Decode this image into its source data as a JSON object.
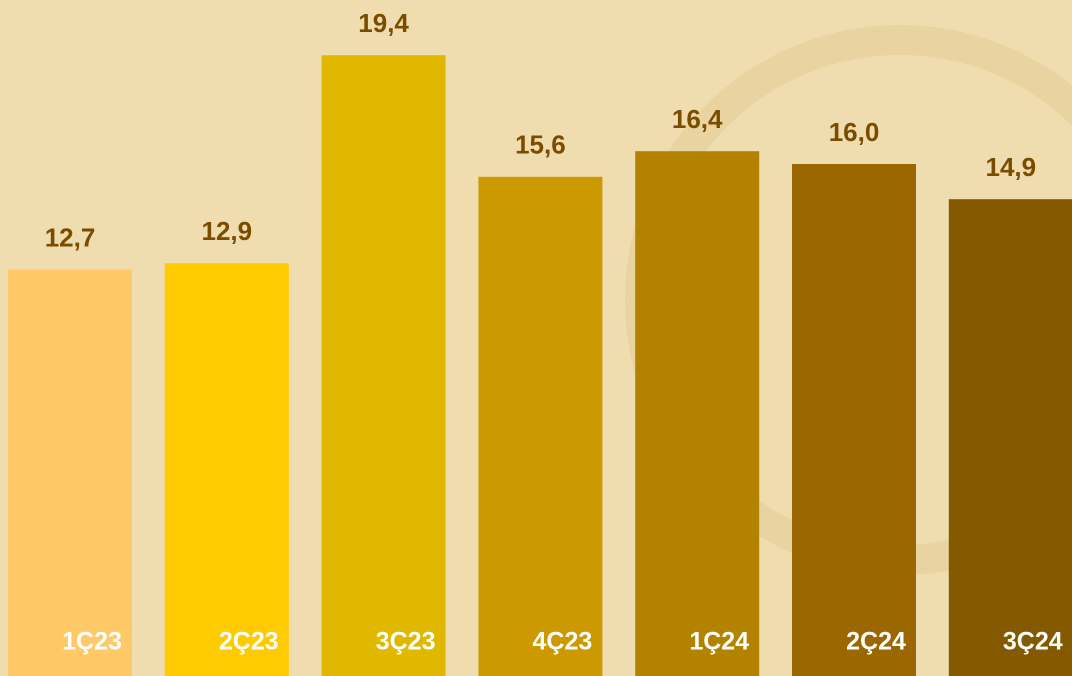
{
  "chart_data": {
    "type": "bar",
    "categories": [
      "1Ç23",
      "2Ç23",
      "3Ç23",
      "4Ç23",
      "1Ç24",
      "2Ç24",
      "3Ç24"
    ],
    "values": [
      12.7,
      12.9,
      19.4,
      15.6,
      16.4,
      16.0,
      14.9
    ],
    "value_labels": [
      "12,7",
      "12,9",
      "19,4",
      "15,6",
      "16,4",
      "16,0",
      "14,9"
    ],
    "colors": [
      "#fec966",
      "#fecb00",
      "#e0b800",
      "#cc9900",
      "#b38300",
      "#9b6700",
      "#845900"
    ],
    "ylim": [
      0,
      21
    ]
  }
}
